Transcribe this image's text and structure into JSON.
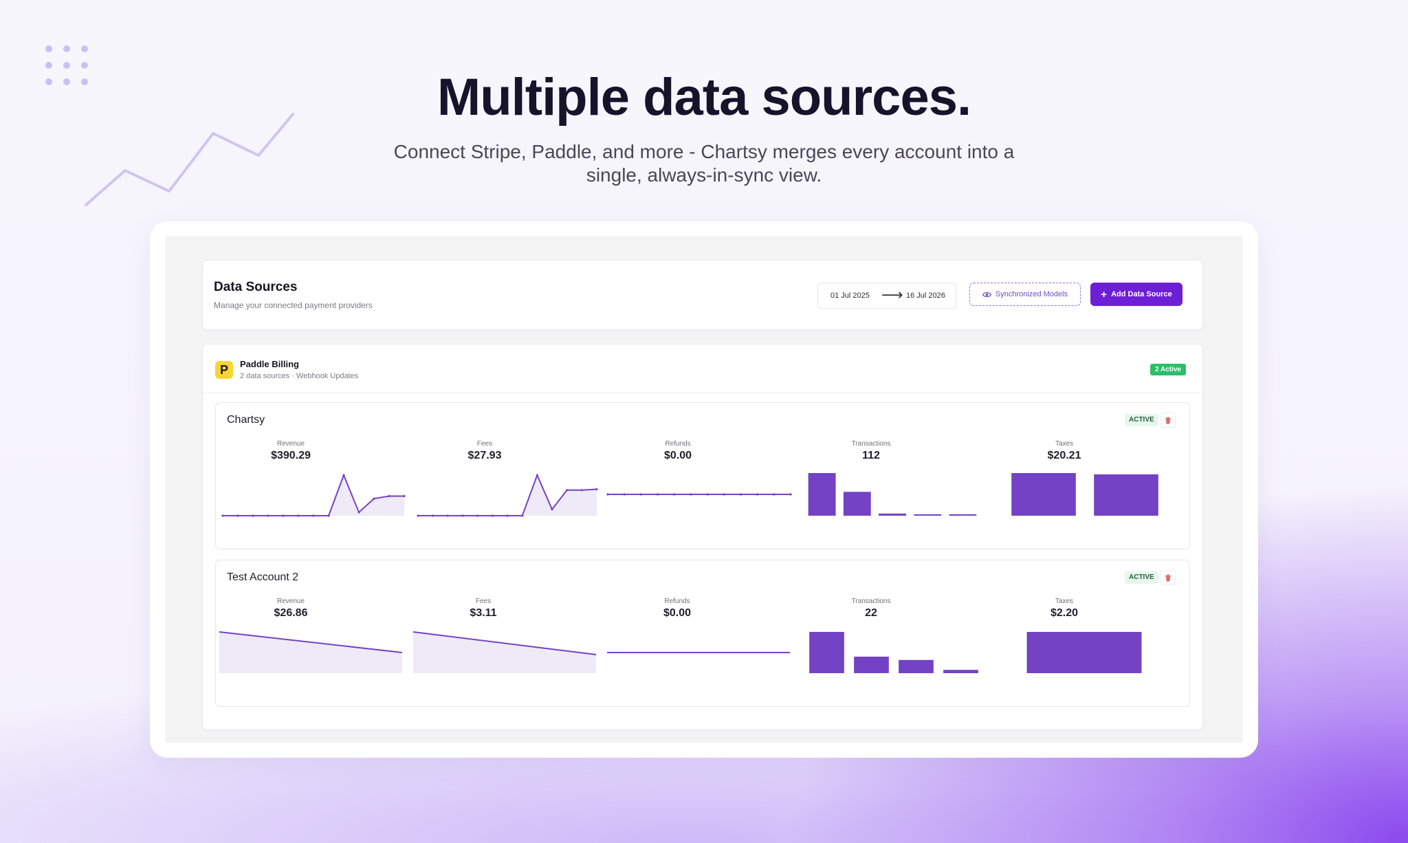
{
  "hero": {
    "title": "Multiple data sources.",
    "subtitle_line1": "Connect Stripe, Paddle, and more -  Chartsy merges every account into a",
    "subtitle_line2": "single, always-in-sync view."
  },
  "colors": {
    "accent": "#6d1fd6",
    "chart": "#7442c4",
    "chart_fill": "#efeaf7",
    "active_green": "#2bbf6a",
    "provider_logo": "#f7d533"
  },
  "header": {
    "title": "Data Sources",
    "subtitle": "Manage your connected payment providers",
    "date_from": "01 Jul 2025",
    "date_arrow": "⟶",
    "date_to": "16 Jul 2026",
    "sync_label": "Synchronized Models",
    "add_label": "Add Data Source",
    "add_icon": "+"
  },
  "provider": {
    "logo_letter": "P",
    "name": "Paddle Billing",
    "meta": "2 data sources · Webhook Updates",
    "active_count": "2 Active"
  },
  "accounts": [
    {
      "name": "Chartsy",
      "status": "ACTIVE",
      "metrics": [
        {
          "label": "Revenue",
          "value": "$390.29"
        },
        {
          "label": "Fees",
          "value": "$27.93"
        },
        {
          "label": "Refunds",
          "value": "$0.00"
        },
        {
          "label": "Transactions",
          "value": "112"
        },
        {
          "label": "Taxes",
          "value": "$20.21"
        }
      ]
    },
    {
      "name": "Test Account 2",
      "status": "ACTIVE",
      "metrics": [
        {
          "label": "Revenue",
          "value": "$26.86"
        },
        {
          "label": "Fees",
          "value": "$3.11"
        },
        {
          "label": "Refunds",
          "value": "$0.00"
        },
        {
          "label": "Transactions",
          "value": "22"
        },
        {
          "label": "Taxes",
          "value": "$2.20"
        }
      ]
    }
  ],
  "chart_data": [
    {
      "type": "area",
      "values": [
        0,
        0,
        0,
        0,
        0,
        0,
        0,
        0,
        95,
        8,
        40,
        46,
        46
      ]
    },
    {
      "type": "area",
      "values": [
        0,
        0,
        0,
        0,
        0,
        0,
        0,
        0,
        95,
        15,
        60,
        60,
        62
      ]
    },
    {
      "type": "line",
      "values": [
        0,
        0,
        0,
        0,
        0,
        0,
        0,
        0,
        0,
        0,
        0,
        0
      ]
    },
    {
      "type": "bar",
      "values": [
        100,
        56,
        5,
        3,
        2
      ]
    },
    {
      "type": "bar",
      "values": [
        100,
        97
      ]
    },
    {
      "type": "area",
      "values": [
        100,
        50
      ]
    },
    {
      "type": "area",
      "values": [
        100,
        45
      ]
    },
    {
      "type": "line",
      "values": [
        0,
        0
      ]
    },
    {
      "type": "bar",
      "values": [
        100,
        40,
        32,
        8
      ]
    },
    {
      "type": "bar",
      "values": [
        100
      ]
    }
  ]
}
